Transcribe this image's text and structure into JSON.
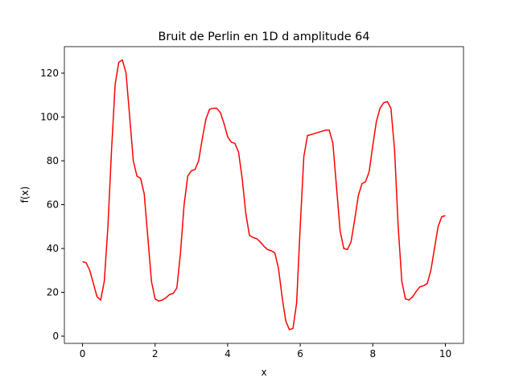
{
  "chart_data": {
    "type": "line",
    "title": "Bruit de Perlin en 1D d amplitude 64",
    "xlabel": "x",
    "ylabel": "f(x)",
    "x": [
      0,
      0.1,
      0.2,
      0.3,
      0.4,
      0.5,
      0.6,
      0.7,
      0.8,
      0.9,
      1.0,
      1.1,
      1.2,
      1.3,
      1.4,
      1.5,
      1.6,
      1.7,
      1.8,
      1.9,
      2.0,
      2.1,
      2.2,
      2.3,
      2.4,
      2.5,
      2.6,
      2.7,
      2.8,
      2.9,
      3.0,
      3.1,
      3.2,
      3.3,
      3.4,
      3.5,
      3.6,
      3.7,
      3.8,
      3.9,
      4.0,
      4.1,
      4.2,
      4.3,
      4.4,
      4.5,
      4.6,
      4.7,
      4.8,
      4.9,
      5.0,
      5.1,
      5.2,
      5.3,
      5.4,
      5.5,
      5.6,
      5.7,
      5.8,
      5.9,
      6.0,
      6.1,
      6.2,
      6.3,
      6.4,
      6.5,
      6.6,
      6.7,
      6.8,
      6.9,
      7.0,
      7.1,
      7.2,
      7.3,
      7.4,
      7.5,
      7.6,
      7.7,
      7.8,
      7.9,
      8.0,
      8.1,
      8.2,
      8.3,
      8.4,
      8.5,
      8.6,
      8.7,
      8.8,
      8.9,
      9.0,
      9.1,
      9.2,
      9.3,
      9.4,
      9.5,
      9.6,
      9.7,
      9.8,
      9.9,
      10.0
    ],
    "series": [
      {
        "name": "f(x)",
        "color": "#ff0000",
        "values": [
          34,
          33.5,
          30,
          24,
          18,
          16.5,
          25,
          50,
          85,
          115,
          125,
          126,
          120,
          100,
          80,
          73,
          72,
          65,
          45,
          25,
          17,
          16,
          16.5,
          17.5,
          19,
          19.5,
          22,
          38,
          60,
          73,
          75.5,
          76,
          80,
          90,
          99,
          103.5,
          104,
          104,
          102,
          97,
          91,
          88.5,
          88,
          84,
          72,
          56,
          46,
          45,
          44.5,
          43,
          41,
          39.5,
          39,
          38,
          31,
          18,
          7,
          3,
          3.5,
          15,
          50,
          82,
          91.5,
          92,
          92.5,
          93,
          93.5,
          94,
          94,
          88,
          68,
          48,
          40,
          39.5,
          43,
          53,
          64,
          69.5,
          70.5,
          75,
          87,
          98,
          104,
          106.5,
          107,
          104,
          85,
          50,
          25,
          17,
          16.5,
          18,
          20.5,
          22.5,
          23,
          24,
          30,
          40,
          50,
          54.5,
          55
        ]
      }
    ],
    "xlim": [
      -0.5,
      10.5
    ],
    "ylim": [
      -3.3,
      132.1
    ],
    "xticks": [
      0,
      2,
      4,
      6,
      8,
      10
    ],
    "yticks": [
      0,
      20,
      40,
      60,
      80,
      100,
      120
    ]
  }
}
